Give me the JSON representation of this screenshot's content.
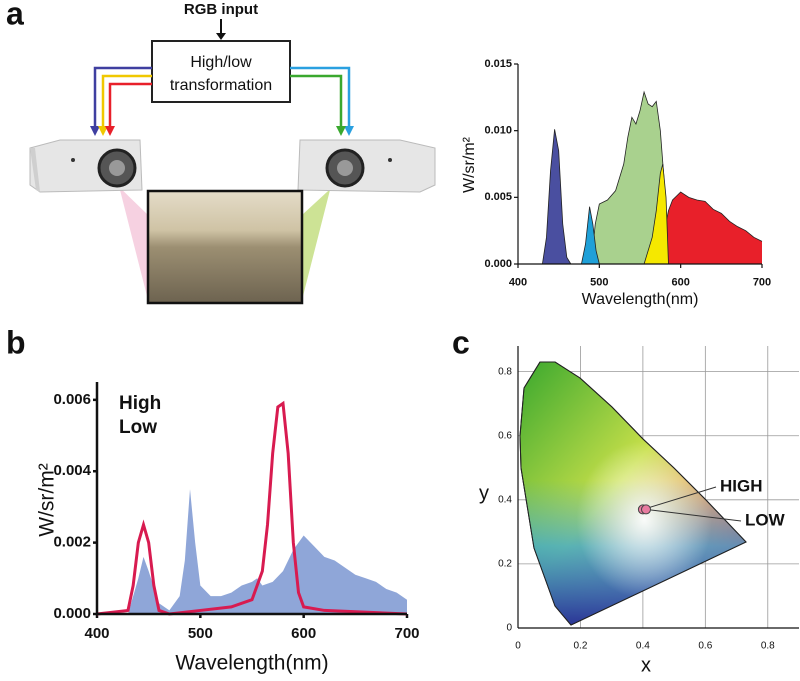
{
  "diagram": {
    "panel": "a",
    "input": "RGB input",
    "box": [
      "High/low",
      "transformation"
    ]
  },
  "chart_data": [
    {
      "type": "area",
      "panel": "a",
      "xlabel": "Wavelength(nm)",
      "ylabel": "W/sr/m²",
      "xlim": [
        400,
        700
      ],
      "ylim": [
        0,
        0.015
      ],
      "xticks": [
        400,
        500,
        600,
        700
      ],
      "yticks": [
        {
          "value": 0,
          "label": "0.000"
        },
        {
          "value": 0.005,
          "label": "0.005"
        },
        {
          "value": 0.01,
          "label": "0.010"
        },
        {
          "value": 0.015,
          "label": "0.015"
        }
      ],
      "series": [
        {
          "color": "#a9d18e",
          "type": "area",
          "x": [
            490,
            495,
            500,
            510,
            520,
            530,
            535,
            540,
            545,
            550,
            555,
            560,
            565,
            570,
            575,
            580,
            585
          ],
          "values": [
            0,
            0.003,
            0.0045,
            0.0048,
            0.0055,
            0.0075,
            0.0095,
            0.011,
            0.0105,
            0.0115,
            0.0129,
            0.012,
            0.0118,
            0.0122,
            0.01,
            0.006,
            0
          ]
        },
        {
          "color": "#e8202a",
          "type": "area",
          "x": [
            575,
            580,
            585,
            590,
            600,
            610,
            620,
            630,
            640,
            650,
            660,
            670,
            680,
            690,
            700
          ],
          "values": [
            0,
            0.0025,
            0.004,
            0.0048,
            0.0054,
            0.005,
            0.0048,
            0.0047,
            0.0041,
            0.0038,
            0.0032,
            0.0028,
            0.0025,
            0.002,
            0.0017
          ]
        },
        {
          "color": "#f5e800",
          "type": "area",
          "x": [
            555,
            565,
            570,
            575,
            578,
            582,
            585
          ],
          "values": [
            0,
            0.002,
            0.004,
            0.0068,
            0.0075,
            0.005,
            0
          ]
        },
        {
          "color": "#1fa0d8",
          "type": "area",
          "x": [
            478,
            483,
            488,
            492,
            496,
            500
          ],
          "values": [
            0,
            0.0015,
            0.0043,
            0.003,
            0.001,
            0
          ]
        },
        {
          "color": "#4a4fa0",
          "type": "area",
          "x": [
            430,
            435,
            440,
            445,
            450,
            455,
            460,
            465
          ],
          "values": [
            0,
            0.002,
            0.007,
            0.0101,
            0.0085,
            0.003,
            0.0005,
            0
          ]
        }
      ]
    },
    {
      "type": "area",
      "panel": "b",
      "xlabel": "Wavelength(nm)",
      "ylabel": "W/sr/m²",
      "xlim": [
        400,
        700
      ],
      "ylim": [
        0,
        0.0065
      ],
      "xticks": [
        400,
        500,
        600,
        700
      ],
      "yticks": [
        {
          "value": 0,
          "label": "0.000"
        },
        {
          "value": 0.002,
          "label": "0.002"
        },
        {
          "value": 0.004,
          "label": "0.004"
        },
        {
          "value": 0.006,
          "label": "0.006"
        }
      ],
      "series": [
        {
          "name": "High",
          "color": "#8fa6d8",
          "type": "area",
          "x": [
            430,
            440,
            445,
            450,
            460,
            470,
            480,
            485,
            490,
            495,
            500,
            510,
            520,
            530,
            540,
            550,
            555,
            560,
            570,
            580,
            590,
            600,
            610,
            620,
            630,
            640,
            650,
            660,
            670,
            680,
            690,
            700
          ],
          "values": [
            0,
            0.001,
            0.0016,
            0.0012,
            0.0003,
            0.0001,
            0.0005,
            0.0015,
            0.0035,
            0.002,
            0.0008,
            0.0005,
            0.0005,
            0.0006,
            0.0008,
            0.0009,
            0.001,
            0.0008,
            0.0009,
            0.0012,
            0.0018,
            0.0022,
            0.0019,
            0.0016,
            0.0015,
            0.0013,
            0.0011,
            0.001,
            0.0009,
            0.0007,
            0.0006,
            0.0004
          ]
        },
        {
          "name": "Low",
          "color": "#d81b50",
          "type": "line",
          "x": [
            400,
            430,
            435,
            440,
            445,
            450,
            455,
            460,
            470,
            500,
            530,
            550,
            560,
            565,
            570,
            575,
            580,
            585,
            590,
            595,
            600,
            620,
            700
          ],
          "values": [
            0,
            0.0001,
            0.0008,
            0.002,
            0.0025,
            0.002,
            0.0008,
            0.0001,
            0,
            0.0001,
            0.0002,
            0.0004,
            0.0012,
            0.0025,
            0.0045,
            0.0058,
            0.0059,
            0.0045,
            0.002,
            0.0006,
            0.0002,
            0.0001,
            0
          ]
        }
      ]
    },
    {
      "type": "scatter",
      "panel": "c",
      "xlabel": "x",
      "ylabel": "y",
      "xlim": [
        0,
        0.9
      ],
      "ylim": [
        0,
        0.88
      ],
      "xticks": [
        0,
        0.2,
        0.4,
        0.6,
        0.8
      ],
      "yticks": [
        0,
        0.2,
        0.4,
        0.6,
        0.8
      ],
      "grid": true,
      "series": [
        {
          "name": "HIGH",
          "color": "#e87ca0",
          "x": [
            0.4
          ],
          "values": [
            0.37
          ]
        },
        {
          "name": "LOW",
          "color": "#e87ca0",
          "x": [
            0.41
          ],
          "values": [
            0.37
          ]
        }
      ]
    }
  ]
}
